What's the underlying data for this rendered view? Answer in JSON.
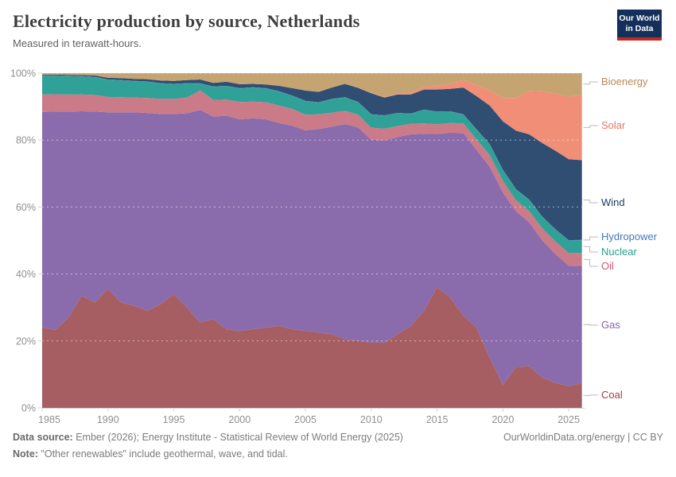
{
  "header": {
    "title": "Electricity production by source, Netherlands",
    "subtitle": "Measured in terawatt-hours.",
    "logo": {
      "line1": "Our World",
      "line2": "in Data"
    }
  },
  "footer": {
    "source_label": "Data source:",
    "source_text": " Ember (2026); Energy Institute - Statistical Review of World Energy (2025)",
    "note_label": "Note:",
    "note_text": " \"Other renewables\" include geothermal, wave, and tidal.",
    "credit": "OurWorldinData.org/energy | CC BY"
  },
  "chart_data": {
    "type": "area",
    "stacked": true,
    "normalized_percent": true,
    "title": "Electricity production by source, Netherlands",
    "ylabel": "",
    "xlabel": "",
    "ylim": [
      0,
      100
    ],
    "grid": "dashed-horizontal",
    "legend_position": "right",
    "yticks": [
      "0%",
      "20%",
      "40%",
      "60%",
      "80%",
      "100%"
    ],
    "ytick_values": [
      0,
      20,
      40,
      60,
      80,
      100
    ],
    "xticks": [
      1985,
      1990,
      1995,
      2000,
      2005,
      2010,
      2015,
      2020,
      2025
    ],
    "x": [
      1985,
      1986,
      1987,
      1988,
      1989,
      1990,
      1991,
      1992,
      1993,
      1994,
      1995,
      1996,
      1997,
      1998,
      1999,
      2000,
      2001,
      2002,
      2003,
      2004,
      2005,
      2006,
      2007,
      2008,
      2009,
      2010,
      2011,
      2012,
      2013,
      2014,
      2015,
      2016,
      2017,
      2018,
      2019,
      2020,
      2021,
      2022,
      2023,
      2024,
      2025,
      2026
    ],
    "series": [
      {
        "name": "Coal",
        "color": "#A75E63",
        "label_color": "#A13D4E",
        "values": [
          24.0,
          23.3,
          27.0,
          33.5,
          31.5,
          35.5,
          31.5,
          30.5,
          29.0,
          31.0,
          34.0,
          30.0,
          25.5,
          26.5,
          23.5,
          23.0,
          23.5,
          24.0,
          24.5,
          23.5,
          23.0,
          22.5,
          22.0,
          20.5,
          20.0,
          19.5,
          19.5,
          22.0,
          24.5,
          29.0,
          36.0,
          33.0,
          27.5,
          24.0,
          15.0,
          6.8,
          12.2,
          12.4,
          9.0,
          7.4,
          6.5,
          7.4
        ]
      },
      {
        "name": "Gas",
        "color": "#8A6BAC",
        "label_color": "#8C62AC",
        "values": [
          64.4,
          65.2,
          61.5,
          55.1,
          57.0,
          52.8,
          56.8,
          57.8,
          59.1,
          56.8,
          53.8,
          58.0,
          63.5,
          60.5,
          63.8,
          63.2,
          63.0,
          62.2,
          60.6,
          60.8,
          59.9,
          60.8,
          62.0,
          64.3,
          63.8,
          60.6,
          60.4,
          58.9,
          57.2,
          52.9,
          45.8,
          49.2,
          54.6,
          53.0,
          57.0,
          57.5,
          46.5,
          43.0,
          41.0,
          38.5,
          36.0,
          35.0
        ]
      },
      {
        "name": "Oil",
        "color": "#CB7A88",
        "label_color": "#CF5A6C",
        "values": [
          5.2,
          5.2,
          5.1,
          5.0,
          5.0,
          4.6,
          4.5,
          4.4,
          4.5,
          4.5,
          4.5,
          4.7,
          5.9,
          5.0,
          4.8,
          5.2,
          5.0,
          5.1,
          5.2,
          5.0,
          4.7,
          4.4,
          4.2,
          4.0,
          3.8,
          3.6,
          3.5,
          3.3,
          3.2,
          3.1,
          2.9,
          2.9,
          2.9,
          3.2,
          3.5,
          3.5,
          3.3,
          3.4,
          3.6,
          3.8,
          3.8,
          3.9
        ]
      },
      {
        "name": "Nuclear",
        "color": "#2FA197",
        "label_color": "#2A9D90",
        "values": [
          5.6,
          5.5,
          5.5,
          5.4,
          5.3,
          5.1,
          5.0,
          4.9,
          4.8,
          4.6,
          4.4,
          4.2,
          2.0,
          3.9,
          4.0,
          4.0,
          4.2,
          4.1,
          4.2,
          3.9,
          4.0,
          3.5,
          4.0,
          3.9,
          3.7,
          3.9,
          3.9,
          3.8,
          2.9,
          4.0,
          3.7,
          3.4,
          2.6,
          2.9,
          3.2,
          3.2,
          3.2,
          3.3,
          3.4,
          3.5,
          3.7,
          3.8
        ]
      },
      {
        "name": "Hydropower",
        "color": "#4682BE",
        "label_color": "#4377BC",
        "values": [
          0.1,
          0.1,
          0.1,
          0.1,
          0.1,
          0.1,
          0.1,
          0.1,
          0.1,
          0.1,
          0.1,
          0.1,
          0.1,
          0.1,
          0.1,
          0.1,
          0.1,
          0.1,
          0.1,
          0.1,
          0.1,
          0.1,
          0.1,
          0.1,
          0.1,
          0.1,
          0.1,
          0.1,
          0.1,
          0.1,
          0.1,
          0.1,
          0.1,
          0.1,
          0.1,
          0.1,
          0.1,
          0.1,
          0.1,
          0.1,
          0.1,
          0.1
        ]
      },
      {
        "name": "Wind",
        "color": "#2F4E71",
        "label_color": "#1A3E63",
        "values": [
          0.3,
          0.3,
          0.3,
          0.3,
          0.4,
          0.5,
          0.6,
          0.6,
          0.7,
          0.8,
          0.9,
          0.9,
          1.1,
          1.1,
          1.2,
          1.2,
          1.0,
          1.1,
          1.6,
          2.2,
          3.1,
          3.1,
          3.4,
          4.0,
          4.2,
          6.3,
          5.3,
          5.5,
          5.7,
          6.0,
          6.6,
          6.7,
          8.0,
          9.9,
          11.5,
          14.5,
          17.5,
          19.5,
          22.0,
          23.5,
          24.2,
          23.8
        ]
      },
      {
        "name": "Solar",
        "color": "#F08E77",
        "label_color": "#EA7861",
        "values": [
          0.0,
          0.0,
          0.0,
          0.0,
          0.0,
          0.0,
          0.0,
          0.0,
          0.0,
          0.0,
          0.0,
          0.0,
          0.0,
          0.0,
          0.0,
          0.0,
          0.0,
          0.0,
          0.0,
          0.0,
          0.0,
          0.0,
          0.0,
          0.0,
          0.1,
          0.1,
          0.2,
          0.3,
          0.5,
          0.8,
          1.1,
          1.5,
          2.2,
          3.3,
          4.6,
          7.0,
          9.8,
          13.0,
          15.5,
          17.0,
          18.7,
          19.5
        ]
      },
      {
        "name": "Bioenergy",
        "color": "#C5A471",
        "label_color": "#B68A57",
        "values": [
          0.4,
          0.4,
          0.5,
          0.6,
          0.7,
          1.4,
          1.5,
          1.7,
          1.8,
          2.2,
          2.3,
          2.1,
          1.9,
          2.9,
          2.6,
          3.3,
          3.2,
          3.4,
          3.8,
          4.5,
          5.2,
          5.6,
          4.3,
          3.2,
          4.3,
          5.9,
          7.1,
          6.1,
          5.9,
          4.1,
          3.8,
          3.2,
          2.1,
          3.6,
          5.1,
          7.4,
          7.4,
          5.3,
          5.4,
          6.2,
          7.0,
          6.5
        ]
      }
    ]
  }
}
